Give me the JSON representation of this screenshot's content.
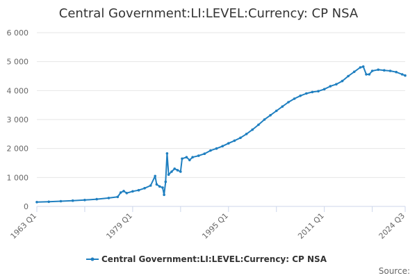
{
  "chart_data": {
    "type": "line",
    "title": "Central Government:LI:LEVEL:Currency: CP NSA",
    "xlabel": "",
    "ylabel": "",
    "ylim": [
      0,
      6000
    ],
    "yticks": [
      "0",
      "1 000",
      "2 000",
      "3 000",
      "4 000",
      "5 000",
      "6 000"
    ],
    "ytick_values": [
      0,
      1000,
      2000,
      3000,
      4000,
      5000,
      6000
    ],
    "xlim": [
      "1963 Q1",
      "2024 Q3"
    ],
    "xticks": [
      "1963 Q1",
      "1979 Q1",
      "1995 Q1",
      "2011 Q1",
      "2024 Q3"
    ],
    "grid": true,
    "legend": "bottom",
    "series": [
      {
        "name": "Central Government:LI:LEVEL:Currency: CP NSA",
        "color": "#1f7fc0",
        "points": [
          [
            "1963 Q1",
            150
          ],
          [
            "1965 Q1",
            160
          ],
          [
            "1967 Q1",
            180
          ],
          [
            "1969 Q1",
            200
          ],
          [
            "1971 Q1",
            220
          ],
          [
            "1973 Q1",
            250
          ],
          [
            "1975 Q1",
            290
          ],
          [
            "1976 Q3",
            330
          ],
          [
            "1977 Q1",
            480
          ],
          [
            "1977 Q3",
            530
          ],
          [
            "1978 Q1",
            460
          ],
          [
            "1979 Q1",
            520
          ],
          [
            "1980 Q1",
            560
          ],
          [
            "1981 Q1",
            630
          ],
          [
            "1982 Q1",
            720
          ],
          [
            "1982 Q4",
            1050
          ],
          [
            "1983 Q1",
            760
          ],
          [
            "1983 Q3",
            690
          ],
          [
            "1984 Q1",
            650
          ],
          [
            "1984 Q2",
            400
          ],
          [
            "1984 Q3",
            850
          ],
          [
            "1984 Q4",
            1830
          ],
          [
            "1985 Q1",
            1100
          ],
          [
            "1985 Q3",
            1200
          ],
          [
            "1986 Q1",
            1300
          ],
          [
            "1986 Q3",
            1250
          ],
          [
            "1987 Q1",
            1200
          ],
          [
            "1987 Q2",
            1650
          ],
          [
            "1988 Q1",
            1700
          ],
          [
            "1988 Q3",
            1600
          ],
          [
            "1989 Q1",
            1700
          ],
          [
            "1990 Q1",
            1750
          ],
          [
            "1991 Q1",
            1820
          ],
          [
            "1992 Q1",
            1930
          ],
          [
            "1993 Q1",
            2000
          ],
          [
            "1994 Q1",
            2080
          ],
          [
            "1995 Q1",
            2180
          ],
          [
            "1996 Q1",
            2270
          ],
          [
            "1997 Q1",
            2370
          ],
          [
            "1998 Q1",
            2500
          ],
          [
            "1999 Q1",
            2650
          ],
          [
            "2000 Q1",
            2820
          ],
          [
            "2001 Q1",
            3000
          ],
          [
            "2002 Q1",
            3150
          ],
          [
            "2003 Q1",
            3300
          ],
          [
            "2004 Q1",
            3450
          ],
          [
            "2005 Q1",
            3600
          ],
          [
            "2006 Q1",
            3720
          ],
          [
            "2007 Q1",
            3820
          ],
          [
            "2008 Q1",
            3900
          ],
          [
            "2009 Q1",
            3950
          ],
          [
            "2010 Q1",
            3980
          ],
          [
            "2011 Q1",
            4050
          ],
          [
            "2012 Q1",
            4150
          ],
          [
            "2013 Q1",
            4220
          ],
          [
            "2014 Q1",
            4330
          ],
          [
            "2015 Q1",
            4500
          ],
          [
            "2016 Q1",
            4650
          ],
          [
            "2017 Q1",
            4800
          ],
          [
            "2017 Q3",
            4830
          ],
          [
            "2018 Q1",
            4560
          ],
          [
            "2018 Q3",
            4560
          ],
          [
            "2019 Q1",
            4680
          ],
          [
            "2020 Q1",
            4720
          ],
          [
            "2021 Q1",
            4700
          ],
          [
            "2022 Q1",
            4680
          ],
          [
            "2023 Q1",
            4640
          ],
          [
            "2024 Q1",
            4560
          ],
          [
            "2024 Q3",
            4520
          ]
        ]
      }
    ]
  },
  "footer": {
    "source_label": "Source:"
  }
}
